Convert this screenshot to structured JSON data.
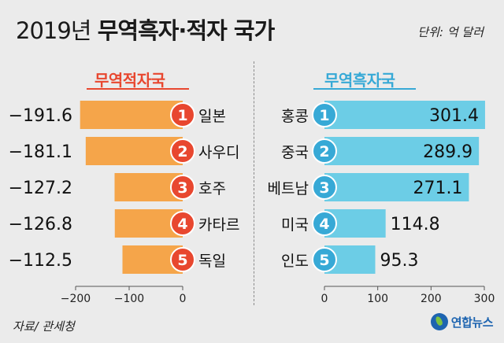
{
  "header": {
    "title_year": "2019년",
    "title_main": "무역흑자·적자 국가",
    "unit": "단위: 억 달러"
  },
  "source": "자료/ 관세청",
  "logo": "연합뉴스",
  "chart_data": [
    {
      "type": "bar",
      "orientation": "horizontal",
      "title": "무역적자국",
      "ranks": [
        "1",
        "2",
        "3",
        "4",
        "5"
      ],
      "categories": [
        "일본",
        "사우디",
        "호주",
        "카타르",
        "독일"
      ],
      "values": [
        -191.6,
        -181.1,
        -127.2,
        -126.8,
        -112.5
      ],
      "value_labels": [
        "−191.6",
        "−181.1",
        "−127.2",
        "−126.8",
        "−112.5"
      ],
      "xlim": [
        -200,
        0
      ],
      "xticks": [
        -200,
        -100,
        0
      ],
      "xtick_labels": [
        "−200",
        "−100",
        "0"
      ],
      "bar_color": "#f5a54a",
      "badge_color": "#e8472f"
    },
    {
      "type": "bar",
      "orientation": "horizontal",
      "title": "무역흑자국",
      "ranks": [
        "1",
        "2",
        "3",
        "4",
        "5"
      ],
      "categories": [
        "홍콩",
        "중국",
        "베트남",
        "미국",
        "인도"
      ],
      "values": [
        301.4,
        289.9,
        271.1,
        114.8,
        95.3
      ],
      "value_labels": [
        "301.4",
        "289.9",
        "271.1",
        "114.8",
        "95.3"
      ],
      "xlim": [
        0,
        300
      ],
      "xticks": [
        0,
        100,
        200,
        300
      ],
      "xtick_labels": [
        "0",
        "100",
        "200",
        "300"
      ],
      "bar_color": "#6ccde6",
      "badge_color": "#37a9d6"
    }
  ]
}
